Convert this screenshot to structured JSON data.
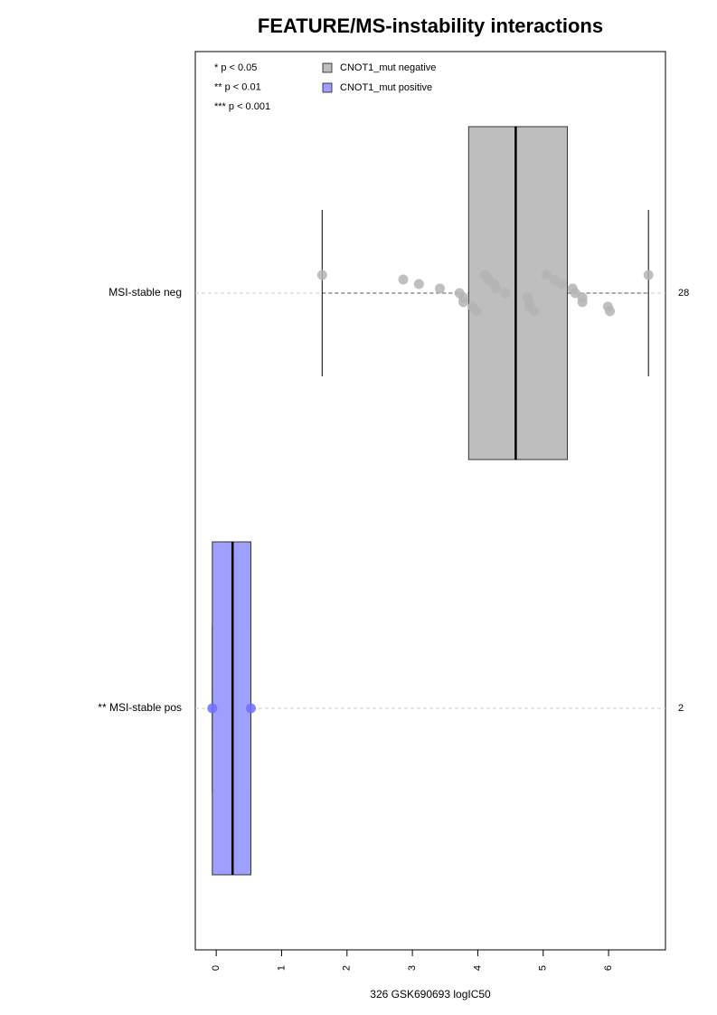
{
  "chart_data": {
    "type": "boxplot",
    "title": "FEATURE/MS-instability interactions",
    "x_label": "326 GSK690693 logIC50",
    "categories": [
      "MSI-stable neg",
      "** MSI-stable pos"
    ],
    "counts": [
      28,
      2
    ],
    "annotations": [
      "* p < 0.05",
      "** p < 0.01",
      "*** p < 0.001"
    ],
    "xlim": [
      -0.32,
      6.87
    ],
    "xticks": [
      0,
      1,
      2,
      3,
      4,
      5,
      6
    ],
    "series": [
      {
        "name": "CNOT1_mut negative",
        "color": "#bebebe",
        "point_color": "#b4b4b4",
        "stats": {
          "whislo": 1.62,
          "q1": 3.86,
          "med": 4.58,
          "q3": 5.37,
          "whishi": 6.61
        },
        "points": [
          1.62,
          2.86,
          3.1,
          3.42,
          3.72,
          3.78,
          3.78,
          3.92,
          3.98,
          4.11,
          4.16,
          4.25,
          4.28,
          4.42,
          4.76,
          4.79,
          4.79,
          4.86,
          5.05,
          5.17,
          5.28,
          5.45,
          5.49,
          5.6,
          5.6,
          5.99,
          6.02,
          6.61
        ]
      },
      {
        "name": "CNOT1_mut positive",
        "color": "#9f9fff",
        "point_color": "#6f6fff",
        "stats": {
          "whislo": -0.06,
          "q1": -0.06,
          "med": 0.25,
          "q3": 0.53,
          "whishi": 0.53
        },
        "points": [
          -0.06,
          0.53
        ]
      }
    ]
  }
}
